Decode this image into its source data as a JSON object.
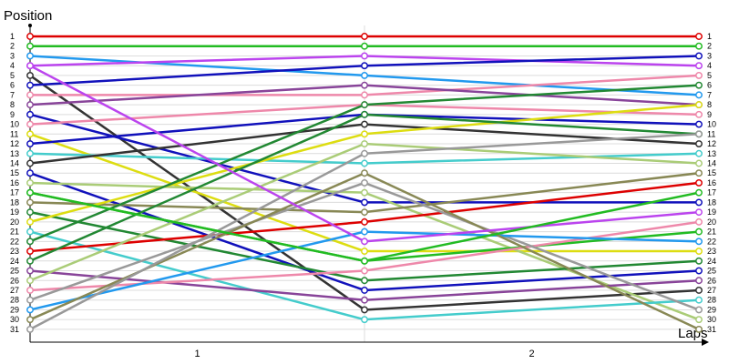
{
  "chart_data": {
    "type": "line",
    "ylabel": "Position",
    "xlabel": "Laps",
    "x": [
      0,
      1,
      2
    ],
    "x_tick_labels": [
      "1",
      "2"
    ],
    "ylim": [
      1,
      31
    ],
    "y_inverted": true,
    "y_ticks": [
      1,
      2,
      3,
      4,
      5,
      6,
      7,
      8,
      9,
      10,
      11,
      12,
      13,
      14,
      15,
      16,
      17,
      18,
      19,
      20,
      21,
      22,
      23,
      24,
      25,
      26,
      27,
      28,
      29,
      30,
      31
    ],
    "grid": true,
    "series": [
      {
        "color": "#dd0000",
        "values": [
          1,
          1,
          1
        ]
      },
      {
        "color": "#22bb22",
        "values": [
          2,
          2,
          2
        ]
      },
      {
        "color": "#2299ee",
        "values": [
          3,
          5,
          7
        ]
      },
      {
        "color": "#bb44ee",
        "values": [
          4,
          3,
          4
        ]
      },
      {
        "color": "#333333",
        "values": [
          5,
          29,
          27
        ]
      },
      {
        "color": "#1111bb",
        "values": [
          6,
          4,
          3
        ]
      },
      {
        "color": "#ee88aa",
        "values": [
          7,
          7,
          5
        ]
      },
      {
        "color": "#884499",
        "values": [
          8,
          6,
          8
        ]
      },
      {
        "color": "#1111bb",
        "values": [
          9,
          18,
          18
        ]
      },
      {
        "color": "#ee88aa",
        "values": [
          10,
          8,
          9
        ]
      },
      {
        "color": "#dddd11",
        "values": [
          11,
          23,
          23
        ]
      },
      {
        "color": "#1111bb",
        "values": [
          12,
          9,
          10
        ]
      },
      {
        "color": "#44cccc",
        "values": [
          13,
          14,
          13
        ]
      },
      {
        "color": "#333333",
        "values": [
          14,
          10,
          12
        ]
      },
      {
        "color": "#1111bb",
        "values": [
          15,
          27,
          25
        ]
      },
      {
        "color": "#aacc77",
        "values": [
          16,
          17,
          30
        ]
      },
      {
        "color": "#22bb22",
        "values": [
          17,
          24,
          21
        ]
      },
      {
        "color": "#888855",
        "values": [
          18,
          19,
          15
        ]
      },
      {
        "color": "#228833",
        "values": [
          19,
          26,
          24
        ]
      },
      {
        "color": "#dddd11",
        "values": [
          20,
          11,
          8
        ]
      },
      {
        "color": "#44cccc",
        "values": [
          21,
          30,
          28
        ]
      },
      {
        "color": "#228833",
        "values": [
          22,
          8,
          6
        ]
      },
      {
        "color": "#dd0000",
        "values": [
          23,
          20,
          16
        ]
      },
      {
        "color": "#228833",
        "values": [
          24,
          9,
          11
        ]
      },
      {
        "color": "#884499",
        "values": [
          25,
          28,
          26
        ]
      },
      {
        "color": "#aacc77",
        "values": [
          26,
          12,
          14
        ]
      },
      {
        "color": "#ee88aa",
        "values": [
          27,
          25,
          20
        ]
      },
      {
        "color": "#999999",
        "values": [
          28,
          16,
          29
        ]
      },
      {
        "color": "#2299ee",
        "values": [
          29,
          21,
          22
        ]
      },
      {
        "color": "#888855",
        "values": [
          30,
          15,
          31
        ]
      },
      {
        "color": "#999999",
        "values": [
          31,
          13,
          11
        ]
      },
      {
        "color": "#bb44ee",
        "values": [
          4,
          22,
          19
        ]
      },
      {
        "color": "#22bb22",
        "values": [
          17,
          24,
          17
        ]
      }
    ]
  }
}
